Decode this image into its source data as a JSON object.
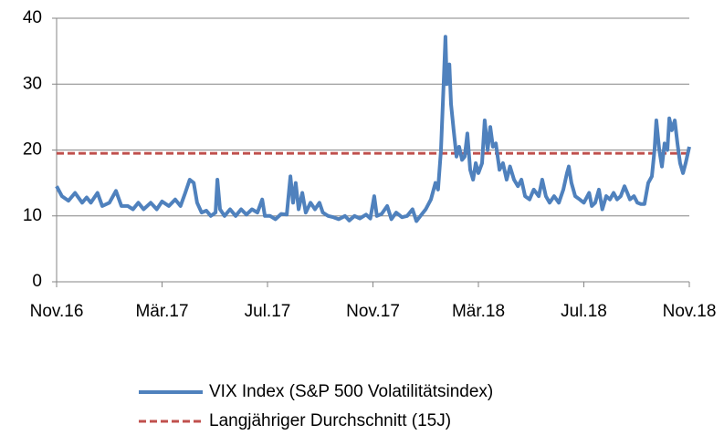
{
  "chart_data": {
    "type": "line",
    "xlim": [
      0,
      24
    ],
    "xticks": [
      {
        "value": 0,
        "label": "Nov.16"
      },
      {
        "value": 4,
        "label": "Mär.17"
      },
      {
        "value": 8,
        "label": "Jul.17"
      },
      {
        "value": 12,
        "label": "Nov.17"
      },
      {
        "value": 16,
        "label": "Mär.18"
      },
      {
        "value": 20,
        "label": "Jul.18"
      },
      {
        "value": 24,
        "label": "Nov.18"
      }
    ],
    "ylim": [
      0,
      40
    ],
    "yticks": [
      0,
      10,
      20,
      30,
      40
    ],
    "grid": true,
    "series": [
      {
        "name": "VIX Index (S&P 500 Volatilitätsindex)",
        "color": "#4f81bd",
        "style": "solid",
        "x": [
          0,
          0.2,
          0.45,
          0.7,
          0.97,
          1.14,
          1.3,
          1.55,
          1.73,
          2.0,
          2.25,
          2.46,
          2.7,
          2.9,
          3.1,
          3.3,
          3.57,
          3.8,
          4.0,
          4.26,
          4.5,
          4.7,
          4.88,
          5.05,
          5.2,
          5.33,
          5.5,
          5.68,
          5.85,
          6.03,
          6.1,
          6.2,
          6.37,
          6.58,
          6.79,
          7.0,
          7.2,
          7.41,
          7.62,
          7.8,
          7.9,
          8.1,
          8.3,
          8.52,
          8.73,
          8.87,
          8.97,
          9.07,
          9.18,
          9.32,
          9.45,
          9.63,
          9.8,
          9.97,
          10.1,
          10.3,
          10.5,
          10.7,
          10.94,
          11.1,
          11.3,
          11.5,
          11.74,
          11.9,
          12.05,
          12.15,
          12.33,
          12.54,
          12.7,
          12.88,
          13.1,
          13.3,
          13.5,
          13.65,
          13.8,
          14.0,
          14.2,
          14.37,
          14.47,
          14.58,
          14.68,
          14.75,
          14.8,
          14.9,
          14.96,
          15.06,
          15.17,
          15.27,
          15.38,
          15.48,
          15.58,
          15.69,
          15.8,
          15.9,
          16.0,
          16.14,
          16.24,
          16.35,
          16.45,
          16.55,
          16.66,
          16.8,
          16.93,
          17.07,
          17.2,
          17.35,
          17.5,
          17.63,
          17.77,
          17.94,
          18.1,
          18.29,
          18.42,
          18.56,
          18.7,
          18.87,
          19.05,
          19.22,
          19.36,
          19.43,
          19.53,
          19.67,
          19.84,
          20.0,
          20.2,
          20.3,
          20.43,
          20.57,
          20.7,
          20.85,
          20.99,
          21.13,
          21.26,
          21.4,
          21.54,
          21.65,
          21.75,
          21.9,
          22.03,
          22.16,
          22.3,
          22.44,
          22.58,
          22.68,
          22.75,
          22.86,
          22.96,
          23.06,
          23.17,
          23.24,
          23.34,
          23.45,
          23.55,
          23.65,
          23.76,
          23.86,
          24.0
        ],
        "values": [
          14.5,
          13,
          12.3,
          13.5,
          12,
          12.8,
          12,
          13.5,
          11.5,
          12,
          13.8,
          11.5,
          11.5,
          11,
          12,
          11,
          12,
          11,
          12.2,
          11.5,
          12.5,
          11.5,
          13.5,
          15.5,
          15,
          12,
          10.5,
          10.8,
          10,
          10.5,
          15.5,
          11,
          10,
          11,
          10,
          11,
          10.2,
          11,
          10.5,
          12.5,
          10,
          10,
          9.5,
          10.3,
          10.2,
          16,
          12,
          15,
          11,
          13.5,
          10.5,
          12,
          11,
          12,
          10.5,
          10,
          9.8,
          9.5,
          10,
          9.3,
          10,
          9.6,
          10.2,
          9.6,
          13,
          10,
          10.3,
          11.5,
          9.5,
          10.5,
          9.8,
          10,
          11,
          9.2,
          10,
          11,
          12.5,
          15,
          14,
          20,
          30,
          37.2,
          30,
          33,
          27,
          23,
          19,
          20.5,
          18.5,
          19,
          22.5,
          17,
          15.5,
          18,
          16.5,
          18,
          24.5,
          20,
          23.5,
          20.5,
          21,
          17,
          18,
          15.5,
          17.5,
          15.5,
          14.5,
          15.5,
          13,
          12.5,
          14,
          13,
          15.5,
          13,
          12,
          13,
          12,
          14,
          16.5,
          17.5,
          15,
          13,
          12.5,
          12,
          13.5,
          11.5,
          12,
          14,
          11,
          13,
          12.5,
          13.5,
          12.5,
          13,
          14.5,
          13.5,
          12.5,
          13,
          12,
          11.8,
          11.8,
          15,
          16,
          20,
          24.5,
          20,
          17.5,
          21,
          20,
          24.8,
          23,
          24.5,
          21,
          18,
          16.5,
          18,
          20.5
        ]
      },
      {
        "name": "Langjähriger Durchschnitt (15J)",
        "color": "#c0504d",
        "style": "dashed",
        "x": [
          0,
          24
        ],
        "values": [
          19.5,
          19.5
        ]
      }
    ]
  }
}
